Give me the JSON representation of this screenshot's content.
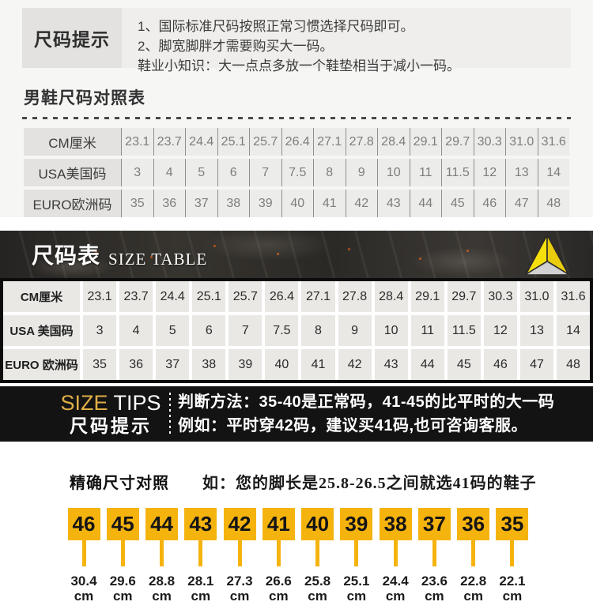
{
  "top_tips": {
    "label": "尺码提示",
    "lines": [
      "1、国际标准尺码按照正常习惯选择尺码即可。",
      "2、脚宽脚胖才需要购买大一码。",
      "鞋业小知识：大一点点多放一个鞋垫相当于减小一码。"
    ]
  },
  "men_table": {
    "title": "男鞋尺码对照表",
    "rows": [
      {
        "label": "CM厘米",
        "values": [
          "23.1",
          "23.7",
          "24.4",
          "25.1",
          "25.7",
          "26.4",
          "27.1",
          "27.8",
          "28.4",
          "29.1",
          "29.7",
          "30.3",
          "31.0",
          "31.6"
        ]
      },
      {
        "label": "USA美国码",
        "values": [
          "3",
          "4",
          "5",
          "6",
          "7",
          "7.5",
          "8",
          "9",
          "10",
          "11",
          "11.5",
          "12",
          "13",
          "14"
        ]
      },
      {
        "label": "EURO欧洲码",
        "values": [
          "35",
          "36",
          "37",
          "38",
          "39",
          "40",
          "41",
          "42",
          "43",
          "44",
          "45",
          "46",
          "47",
          "48"
        ]
      }
    ]
  },
  "banner": {
    "title_cn": "尺码表",
    "title_en": "SIZE TABLE"
  },
  "dark_table": {
    "rows": [
      {
        "label": "CM厘米",
        "values": [
          "23.1",
          "23.7",
          "24.4",
          "25.1",
          "25.7",
          "26.4",
          "27.1",
          "27.8",
          "28.4",
          "29.1",
          "29.7",
          "30.3",
          "31.0",
          "31.6"
        ]
      },
      {
        "label": "USA 美国码",
        "values": [
          "3",
          "4",
          "5",
          "6",
          "7",
          "7.5",
          "8",
          "9",
          "10",
          "11",
          "11.5",
          "12",
          "13",
          "14"
        ]
      },
      {
        "label": "EURO 欧洲码",
        "values": [
          "35",
          "36",
          "37",
          "38",
          "39",
          "40",
          "41",
          "42",
          "43",
          "44",
          "45",
          "46",
          "47",
          "48"
        ]
      }
    ]
  },
  "tips_band": {
    "en_word1": "SIZE",
    "en_word2": "TIPS",
    "title_cn": "尺码提示",
    "lines": [
      "判断方法：35-40是正常码，41-45的比平时的大一码",
      "例如：平时穿42码，建议买41码,也可咨询客服。"
    ]
  },
  "precise": {
    "title": "精确尺寸对照",
    "note": "如：您的脚长是25.8-26.5之间就选41码的鞋子",
    "cm_unit": "cm",
    "markers": [
      {
        "size": "46",
        "cm": "30.4"
      },
      {
        "size": "45",
        "cm": "29.6"
      },
      {
        "size": "44",
        "cm": "28.8"
      },
      {
        "size": "43",
        "cm": "28.1"
      },
      {
        "size": "42",
        "cm": "27.3"
      },
      {
        "size": "41",
        "cm": "26.6"
      },
      {
        "size": "40",
        "cm": "25.8"
      },
      {
        "size": "39",
        "cm": "25.1"
      },
      {
        "size": "38",
        "cm": "24.4"
      },
      {
        "size": "37",
        "cm": "23.6"
      },
      {
        "size": "36",
        "cm": "22.8"
      },
      {
        "size": "35",
        "cm": "22.1"
      }
    ]
  },
  "colors": {
    "marker_yellow": "#F5B30E",
    "gold_heading": "#E0AF45",
    "logo_yellow": "#F5E00E",
    "band_black": "#131313",
    "footer_bar": "#36363D"
  }
}
